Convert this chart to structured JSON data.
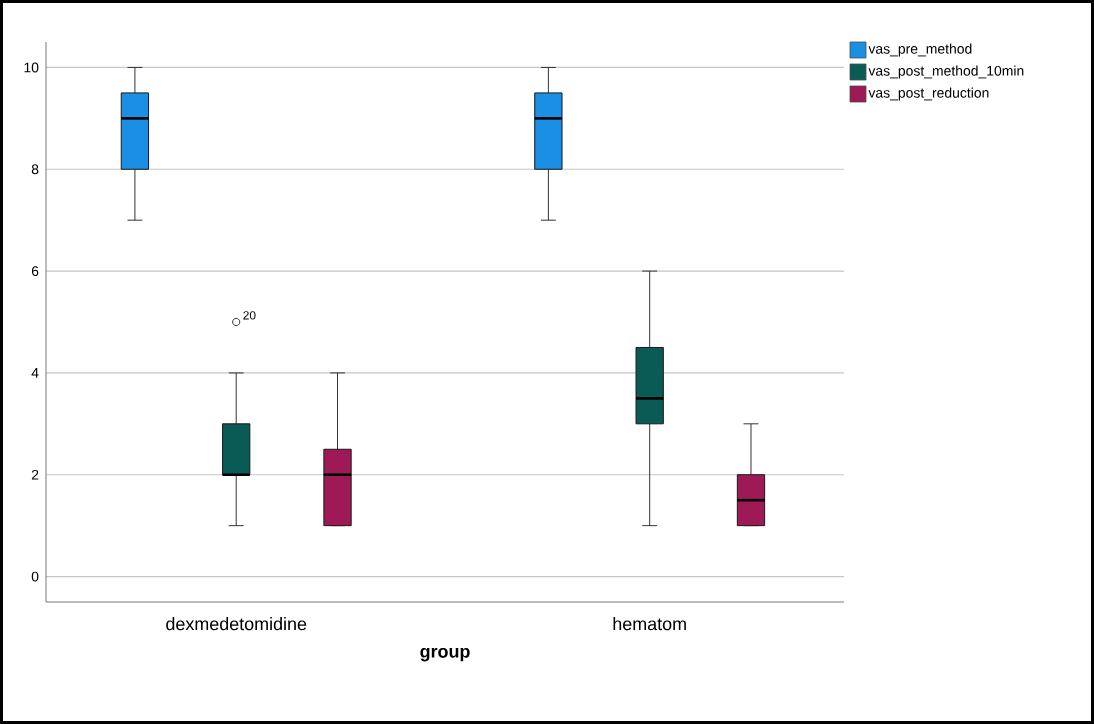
{
  "chart_data": {
    "type": "box",
    "xlabel": "group",
    "categories": [
      "dexmedetomidine",
      "hematom"
    ],
    "series": [
      {
        "name": "vas_pre_method",
        "color": "#1a8fe3",
        "boxes": [
          {
            "low": 7,
            "q1": 8,
            "median": 9,
            "q3": 9.5,
            "high": 10
          },
          {
            "low": 7,
            "q1": 8,
            "median": 9,
            "q3": 9.5,
            "high": 10
          }
        ]
      },
      {
        "name": "vas_post_method_10min",
        "color": "#0a5a55",
        "boxes": [
          {
            "low": 1,
            "q1": 2,
            "median": 2,
            "q3": 3,
            "high": 4,
            "outliers": [
              5
            ]
          },
          {
            "low": 1,
            "q1": 3,
            "median": 3.5,
            "q3": 4.5,
            "high": 6
          }
        ]
      },
      {
        "name": "vas_post_reduction",
        "color": "#9e1a56",
        "boxes": [
          {
            "low": 1,
            "q1": 1,
            "median": 2,
            "q3": 2.5,
            "high": 4
          },
          {
            "low": 1,
            "q1": 1,
            "median": 1.5,
            "q3": 2,
            "high": 3
          }
        ]
      }
    ],
    "ylim": [
      -0.5,
      10.5
    ],
    "yticks": [
      0,
      2,
      4,
      6,
      8,
      10
    ],
    "grid": "y",
    "legend": "top right",
    "annotations": [
      "20"
    ]
  }
}
